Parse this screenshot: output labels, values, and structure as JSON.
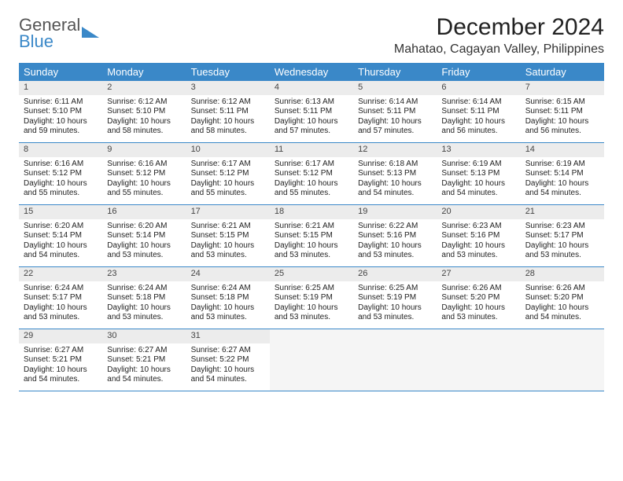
{
  "brand": {
    "line1": "General",
    "line2": "Blue"
  },
  "title": "December 2024",
  "location": "Mahatao, Cagayan Valley, Philippines",
  "colors": {
    "header_bg": "#3a88c8",
    "header_text": "#ffffff",
    "daynum_bg": "#ececec",
    "week_border": "#3a88c8",
    "empty_bg": "#f5f5f5",
    "text": "#222222"
  },
  "typography": {
    "title_fontsize": 30,
    "location_fontsize": 16,
    "dayhead_fontsize": 13,
    "cell_fontsize": 10
  },
  "day_headers": [
    "Sunday",
    "Monday",
    "Tuesday",
    "Wednesday",
    "Thursday",
    "Friday",
    "Saturday"
  ],
  "layout": {
    "cols": 7,
    "rows": 5
  },
  "days": [
    {
      "n": "1",
      "sr": "6:11 AM",
      "ss": "5:10 PM",
      "dl": "10 hours and 59 minutes."
    },
    {
      "n": "2",
      "sr": "6:12 AM",
      "ss": "5:10 PM",
      "dl": "10 hours and 58 minutes."
    },
    {
      "n": "3",
      "sr": "6:12 AM",
      "ss": "5:11 PM",
      "dl": "10 hours and 58 minutes."
    },
    {
      "n": "4",
      "sr": "6:13 AM",
      "ss": "5:11 PM",
      "dl": "10 hours and 57 minutes."
    },
    {
      "n": "5",
      "sr": "6:14 AM",
      "ss": "5:11 PM",
      "dl": "10 hours and 57 minutes."
    },
    {
      "n": "6",
      "sr": "6:14 AM",
      "ss": "5:11 PM",
      "dl": "10 hours and 56 minutes."
    },
    {
      "n": "7",
      "sr": "6:15 AM",
      "ss": "5:11 PM",
      "dl": "10 hours and 56 minutes."
    },
    {
      "n": "8",
      "sr": "6:16 AM",
      "ss": "5:12 PM",
      "dl": "10 hours and 55 minutes."
    },
    {
      "n": "9",
      "sr": "6:16 AM",
      "ss": "5:12 PM",
      "dl": "10 hours and 55 minutes."
    },
    {
      "n": "10",
      "sr": "6:17 AM",
      "ss": "5:12 PM",
      "dl": "10 hours and 55 minutes."
    },
    {
      "n": "11",
      "sr": "6:17 AM",
      "ss": "5:12 PM",
      "dl": "10 hours and 55 minutes."
    },
    {
      "n": "12",
      "sr": "6:18 AM",
      "ss": "5:13 PM",
      "dl": "10 hours and 54 minutes."
    },
    {
      "n": "13",
      "sr": "6:19 AM",
      "ss": "5:13 PM",
      "dl": "10 hours and 54 minutes."
    },
    {
      "n": "14",
      "sr": "6:19 AM",
      "ss": "5:14 PM",
      "dl": "10 hours and 54 minutes."
    },
    {
      "n": "15",
      "sr": "6:20 AM",
      "ss": "5:14 PM",
      "dl": "10 hours and 54 minutes."
    },
    {
      "n": "16",
      "sr": "6:20 AM",
      "ss": "5:14 PM",
      "dl": "10 hours and 53 minutes."
    },
    {
      "n": "17",
      "sr": "6:21 AM",
      "ss": "5:15 PM",
      "dl": "10 hours and 53 minutes."
    },
    {
      "n": "18",
      "sr": "6:21 AM",
      "ss": "5:15 PM",
      "dl": "10 hours and 53 minutes."
    },
    {
      "n": "19",
      "sr": "6:22 AM",
      "ss": "5:16 PM",
      "dl": "10 hours and 53 minutes."
    },
    {
      "n": "20",
      "sr": "6:23 AM",
      "ss": "5:16 PM",
      "dl": "10 hours and 53 minutes."
    },
    {
      "n": "21",
      "sr": "6:23 AM",
      "ss": "5:17 PM",
      "dl": "10 hours and 53 minutes."
    },
    {
      "n": "22",
      "sr": "6:24 AM",
      "ss": "5:17 PM",
      "dl": "10 hours and 53 minutes."
    },
    {
      "n": "23",
      "sr": "6:24 AM",
      "ss": "5:18 PM",
      "dl": "10 hours and 53 minutes."
    },
    {
      "n": "24",
      "sr": "6:24 AM",
      "ss": "5:18 PM",
      "dl": "10 hours and 53 minutes."
    },
    {
      "n": "25",
      "sr": "6:25 AM",
      "ss": "5:19 PM",
      "dl": "10 hours and 53 minutes."
    },
    {
      "n": "26",
      "sr": "6:25 AM",
      "ss": "5:19 PM",
      "dl": "10 hours and 53 minutes."
    },
    {
      "n": "27",
      "sr": "6:26 AM",
      "ss": "5:20 PM",
      "dl": "10 hours and 53 minutes."
    },
    {
      "n": "28",
      "sr": "6:26 AM",
      "ss": "5:20 PM",
      "dl": "10 hours and 54 minutes."
    },
    {
      "n": "29",
      "sr": "6:27 AM",
      "ss": "5:21 PM",
      "dl": "10 hours and 54 minutes."
    },
    {
      "n": "30",
      "sr": "6:27 AM",
      "ss": "5:21 PM",
      "dl": "10 hours and 54 minutes."
    },
    {
      "n": "31",
      "sr": "6:27 AM",
      "ss": "5:22 PM",
      "dl": "10 hours and 54 minutes."
    }
  ],
  "labels": {
    "sunrise": "Sunrise:",
    "sunset": "Sunset:",
    "daylight": "Daylight:"
  }
}
